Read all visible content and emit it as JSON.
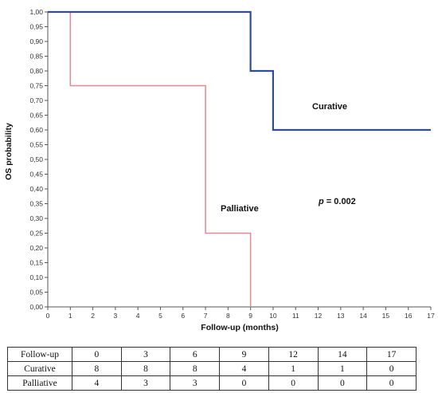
{
  "chart_data": {
    "type": "line",
    "subtype": "kaplan-meier-step",
    "ylabel": "OS probability",
    "xlabel": "Follow-up (months)",
    "xlim": [
      0,
      17
    ],
    "ylim": [
      0,
      1
    ],
    "x_ticks": [
      "0",
      "1",
      "2",
      "3",
      "4",
      "5",
      "6",
      "7",
      "8",
      "9",
      "10",
      "11",
      "12",
      "13",
      "14",
      "15",
      "16",
      "17"
    ],
    "y_ticks": [
      "0,00",
      "0,05",
      "0,10",
      "0,15",
      "0,20",
      "0,25",
      "0,30",
      "0,35",
      "0,40",
      "0,45",
      "0,50",
      "0,55",
      "0,60",
      "0,65",
      "0,70",
      "0,75",
      "0,80",
      "0,85",
      "0,90",
      "0,95",
      "1,00"
    ],
    "grid": false,
    "series": [
      {
        "name": "Curative",
        "color": "#2f4b9b",
        "points": [
          [
            0,
            1.0
          ],
          [
            9,
            1.0
          ],
          [
            9,
            0.8
          ],
          [
            10,
            0.8
          ],
          [
            10,
            0.6
          ],
          [
            17,
            0.6
          ]
        ]
      },
      {
        "name": "Palliative",
        "color": "#e8878f",
        "points": [
          [
            0,
            1.0
          ],
          [
            1,
            1.0
          ],
          [
            1,
            0.75
          ],
          [
            7,
            0.75
          ],
          [
            7,
            0.25
          ],
          [
            9,
            0.25
          ],
          [
            9,
            0.0
          ]
        ]
      }
    ],
    "annotations": {
      "curative_label": "Curative",
      "palliative_label": "Palliative",
      "p_prefix": "p",
      "p_suffix": " = 0.002"
    }
  },
  "risk_table": {
    "header_label": "Follow-up",
    "times": [
      "0",
      "3",
      "6",
      "9",
      "12",
      "14",
      "17"
    ],
    "rows": [
      {
        "label": "Curative",
        "values": [
          "8",
          "8",
          "8",
          "4",
          "1",
          "1",
          "0"
        ]
      },
      {
        "label": "Palliative",
        "values": [
          "4",
          "3",
          "3",
          "0",
          "0",
          "0",
          "0"
        ]
      }
    ]
  }
}
